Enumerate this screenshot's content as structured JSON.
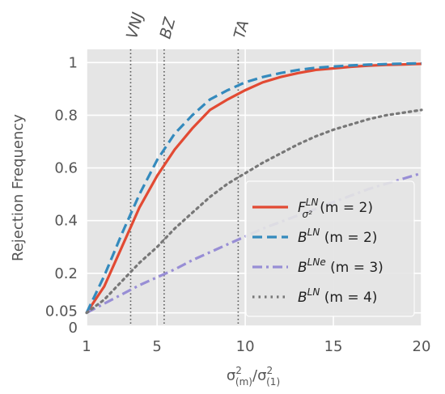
{
  "chart_data": {
    "type": "line",
    "title": "",
    "ylabel": "Rejection Frequency",
    "xlabel": {
      "base": "σ",
      "num_sub": "(m)",
      "den_sub": "(1)",
      "sup": "2"
    },
    "xlim": [
      1,
      20
    ],
    "ylim": [
      0,
      1.05
    ],
    "x_ticks": [
      1,
      5,
      10,
      15,
      20
    ],
    "x_tick_labels": [
      "1",
      "5",
      "10",
      "15",
      "20"
    ],
    "y_ticks": [
      0,
      0.05,
      0.2,
      0.4,
      0.6,
      0.8,
      1.0
    ],
    "y_tick_labels": [
      "0",
      "0.05",
      "0.2",
      "0.4",
      "0.6",
      "0.8",
      "1"
    ],
    "grid": true,
    "background": "#e5e5e5",
    "legend_position": "lower-right",
    "vertical_lines": [
      {
        "label": "VNJ",
        "x": 3.5
      },
      {
        "label": "BZ",
        "x": 5.4
      },
      {
        "label": "TA",
        "x": 9.6
      }
    ],
    "series": [
      {
        "legend": {
          "main": "F",
          "sup": "LN",
          "sub": "σ²",
          "rest": " (m = 2)"
        },
        "color": "#e24a33",
        "style": "solid",
        "x": [
          1,
          2,
          3,
          4,
          5,
          6,
          7,
          8,
          9,
          10,
          11,
          12,
          13,
          14,
          15,
          16,
          17,
          18,
          19,
          20
        ],
        "y": [
          0.05,
          0.15,
          0.3,
          0.45,
          0.57,
          0.67,
          0.75,
          0.82,
          0.86,
          0.895,
          0.925,
          0.945,
          0.96,
          0.972,
          0.978,
          0.984,
          0.988,
          0.991,
          0.993,
          0.995
        ]
      },
      {
        "legend": {
          "main": "B",
          "sup": "LN",
          "sub": "",
          "rest": " (m = 2)"
        },
        "color": "#348abd",
        "style": "dashed",
        "x": [
          1,
          2,
          3,
          4,
          5,
          6,
          7,
          8,
          9,
          10,
          11,
          12,
          13,
          14,
          15,
          16,
          17,
          18,
          19,
          20
        ],
        "y": [
          0.05,
          0.19,
          0.35,
          0.5,
          0.63,
          0.73,
          0.8,
          0.86,
          0.895,
          0.925,
          0.945,
          0.96,
          0.972,
          0.98,
          0.985,
          0.989,
          0.992,
          0.994,
          0.996,
          0.997
        ]
      },
      {
        "legend": {
          "main": "B",
          "sup": "LNe",
          "sub": "",
          "rest": " (m = 3)"
        },
        "color": "#988ed5",
        "style": "dashdot",
        "x": [
          1,
          2,
          3,
          4,
          5,
          6,
          7,
          8,
          9,
          10,
          11,
          12,
          13,
          14,
          15,
          16,
          17,
          18,
          19,
          20
        ],
        "y": [
          0.05,
          0.085,
          0.12,
          0.155,
          0.185,
          0.215,
          0.25,
          0.28,
          0.31,
          0.34,
          0.37,
          0.395,
          0.42,
          0.445,
          0.47,
          0.495,
          0.52,
          0.54,
          0.56,
          0.58
        ]
      },
      {
        "legend": {
          "main": "B",
          "sup": "LN",
          "sub": "",
          "rest": " (m = 4)"
        },
        "color": "#777777",
        "style": "dotted",
        "x": [
          1,
          2,
          3,
          4,
          5,
          6,
          7,
          8,
          9,
          10,
          11,
          12,
          13,
          14,
          15,
          16,
          17,
          18,
          19,
          20
        ],
        "y": [
          0.05,
          0.1,
          0.17,
          0.24,
          0.3,
          0.37,
          0.43,
          0.49,
          0.54,
          0.58,
          0.62,
          0.655,
          0.69,
          0.72,
          0.745,
          0.765,
          0.785,
          0.8,
          0.81,
          0.82
        ]
      }
    ]
  }
}
